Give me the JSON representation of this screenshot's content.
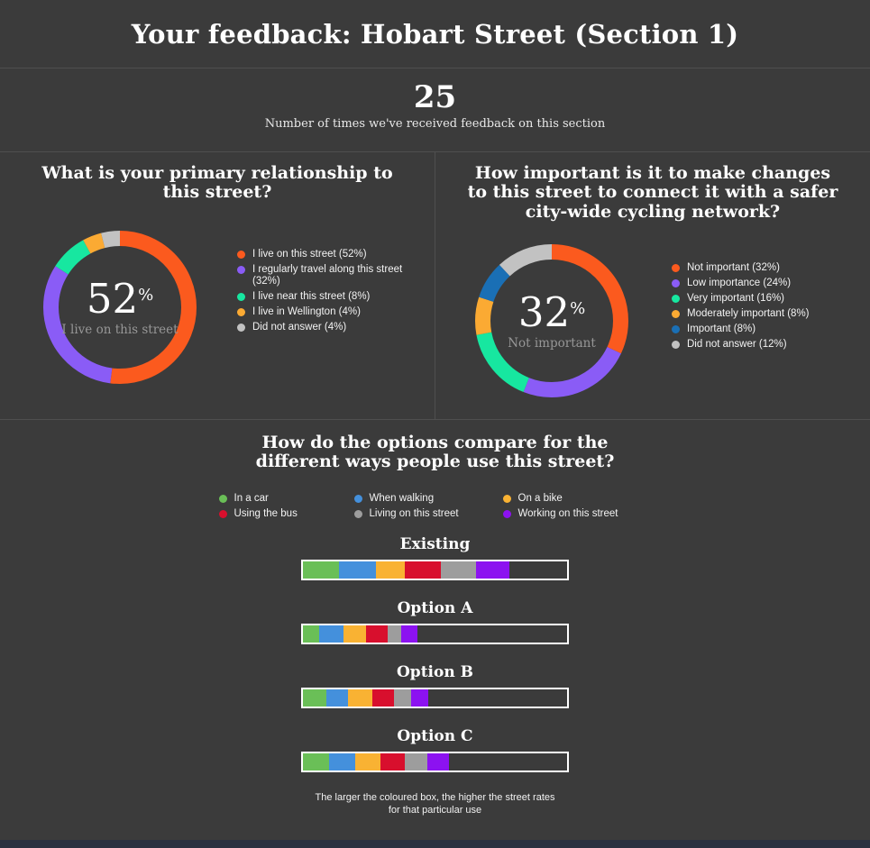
{
  "header": {
    "title": "Your feedback: Hobart Street (Section 1)"
  },
  "stats": {
    "count": "25",
    "caption": "Number of times we've received feedback on this section"
  },
  "colors": {
    "background": "#3b3b3b",
    "divider": "#4f4f4f",
    "footer_strip": "#2b3140"
  },
  "chart_data": [
    {
      "type": "pie",
      "variant": "donut",
      "title": "What is your primary relationship to this street?",
      "center": {
        "value": "52",
        "unit": "%",
        "label": "I live on this street"
      },
      "legend_position": "right",
      "segments": [
        {
          "label": "I live on this street",
          "value": 52,
          "color": "#fb5a1e"
        },
        {
          "label": "I regularly travel along this street",
          "value": 32,
          "color": "#8a5cf6"
        },
        {
          "label": "I live near this street",
          "value": 8,
          "color": "#17e7a0"
        },
        {
          "label": "I live in Wellington",
          "value": 4,
          "color": "#fbaa33"
        },
        {
          "label": "Did not answer",
          "value": 4,
          "color": "#c2c2c2"
        }
      ]
    },
    {
      "type": "pie",
      "variant": "donut",
      "title": "How important is it to make changes to this street to connect it with a safer city-wide cycling network?",
      "center": {
        "value": "32",
        "unit": "%",
        "label": "Not important"
      },
      "legend_position": "right",
      "segments": [
        {
          "label": "Not important",
          "value": 32,
          "color": "#fb5a1e"
        },
        {
          "label": "Low importance",
          "value": 24,
          "color": "#8a5cf6"
        },
        {
          "label": "Very important",
          "value": 16,
          "color": "#17e7a0"
        },
        {
          "label": "Moderately important",
          "value": 8,
          "color": "#fbaa33"
        },
        {
          "label": "Important",
          "value": 8,
          "color": "#1a6fb5"
        },
        {
          "label": "Did not answer",
          "value": 12,
          "color": "#c2c2c2"
        }
      ]
    },
    {
      "type": "bar",
      "variant": "horizontal-stacked-comparison",
      "title": "How do the options compare for the different ways people use this street?",
      "caption": "The larger the coloured box, the higher the street rates for that particular use",
      "value_units": "segment width as % of full bar width (larger = higher rating)",
      "series": [
        {
          "label": "In a car",
          "color": "#6abf57"
        },
        {
          "label": "When walking",
          "color": "#4490dc"
        },
        {
          "label": "On a bike",
          "color": "#f9b233"
        },
        {
          "label": "Using the bus",
          "color": "#d80f2d"
        },
        {
          "label": "Living on this street",
          "color": "#9d9d9d"
        },
        {
          "label": "Working on this street",
          "color": "#8c12f0"
        }
      ],
      "rows": [
        {
          "label": "Existing",
          "values_pct": [
            13.6,
            13.9,
            11.0,
            13.7,
            13.5,
            12.4
          ]
        },
        {
          "label": "Option A",
          "values_pct": [
            6.0,
            9.3,
            8.7,
            8.2,
            5.1,
            6.1
          ]
        },
        {
          "label": "Option B",
          "values_pct": [
            8.8,
            8.2,
            9.2,
            8.4,
            6.4,
            6.3
          ]
        },
        {
          "label": "Option C",
          "values_pct": [
            9.9,
            9.8,
            9.5,
            9.3,
            8.7,
            8.2
          ]
        }
      ]
    }
  ]
}
